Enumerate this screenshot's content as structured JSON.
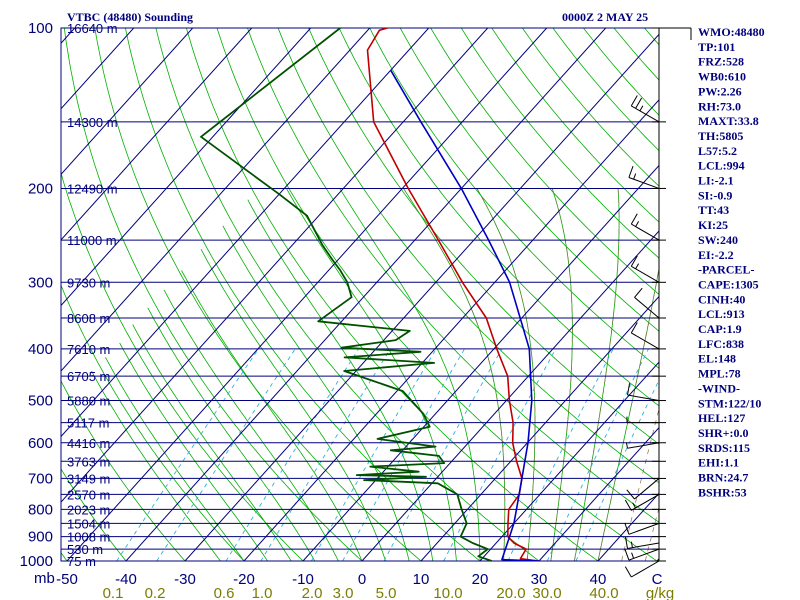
{
  "title": "VTBC (48480) Sounding",
  "datetime": "0000Z  2 MAY 25",
  "colors": {
    "axes": "#00007c",
    "isobar": "#00007c",
    "isotherm": "#00007c",
    "dry_adiabat": "#00b000",
    "moist_adiabat": "#00b000",
    "mixing_ratio": "#2db0e0",
    "mixing_ratio_label": "#7c7c00",
    "temperature": "#c00000",
    "dewpoint": "#005000",
    "parcel": "#0000c0",
    "wind_barbs": "#000000",
    "background": "#ffffff"
  },
  "x_ticks": [
    "-50",
    "-40",
    "-30",
    "-20",
    "-10",
    "0",
    "10",
    "20",
    "30",
    "40",
    "C"
  ],
  "x_unit_label": "mb",
  "mixing_ratio_labels": [
    "0.1",
    "0.2",
    "0.6",
    "1.0",
    "2.0",
    "3.0",
    "5.0",
    "10.0",
    "20.0",
    "30.0",
    "40.0",
    "g/kg"
  ],
  "pressure_ticks": [
    "100",
    "200",
    "300",
    "400",
    "500",
    "600",
    "700",
    "800",
    "900",
    "1000"
  ],
  "height_labels": [
    "16640 m",
    "14300 m",
    "12490 m",
    "11000 m",
    "9730 m",
    "8608 m",
    "7610 m",
    "6705 m",
    "5880 m",
    "5117 m",
    "4416 m",
    "3763 m",
    "3149 m",
    "2570 m",
    "2023 m",
    "1504 m",
    "1008 m",
    "530 m",
    "75 m"
  ],
  "indices": [
    "WMO:48480",
    "TP:101",
    "FRZ:528",
    "WB0:610",
    "PW:2.26",
    "RH:73.0",
    "MAXT:33.8",
    "TH:5805",
    "L57:5.2",
    "LCL:994",
    "LI:-2.1",
    "SI:-0.9",
    "TT:43",
    "KI:25",
    "SW:240",
    "EI:-2.2",
    "-PARCEL-",
    "CAPE:1305",
    "CINH:40",
    "LCL:913",
    "CAP:1.9",
    "LFC:838",
    "EL:148",
    "MPL:78",
    "-WIND-",
    "STM:122/10",
    "HEL:127",
    "SHR+:0.0",
    "SRDS:115",
    "EHI:1.1",
    "BRN:24.7",
    "BSHR:53"
  ],
  "chart_data": {
    "type": "line",
    "diagram": "skew-T log-P",
    "xlabel": "C",
    "ylabel": "mb",
    "xlim": [
      -50,
      50
    ],
    "ylim": [
      1000,
      100
    ],
    "y_scale": "log",
    "isobars_mb": [
      100,
      150,
      200,
      250,
      300,
      350,
      400,
      450,
      500,
      550,
      600,
      650,
      700,
      750,
      800,
      850,
      900,
      950,
      1000
    ],
    "mixing_ratios_gkg": [
      0.1,
      0.2,
      0.6,
      1.0,
      2.0,
      3.0,
      5.0,
      10.0,
      20.0,
      30.0,
      40.0
    ],
    "height_levels": [
      {
        "p": 100,
        "h": "16640 m"
      },
      {
        "p": 150,
        "h": "14300 m"
      },
      {
        "p": 200,
        "h": "12490 m"
      },
      {
        "p": 250,
        "h": "11000 m"
      },
      {
        "p": 300,
        "h": "9730 m"
      },
      {
        "p": 350,
        "h": "8608 m"
      },
      {
        "p": 400,
        "h": "7610 m"
      },
      {
        "p": 450,
        "h": "6705 m"
      },
      {
        "p": 500,
        "h": "5880 m"
      },
      {
        "p": 550,
        "h": "5117 m"
      },
      {
        "p": 600,
        "h": "4416 m"
      },
      {
        "p": 650,
        "h": "3763 m"
      },
      {
        "p": 700,
        "h": "3149 m"
      },
      {
        "p": 750,
        "h": "2570 m"
      },
      {
        "p": 800,
        "h": "2023 m"
      },
      {
        "p": 850,
        "h": "1504 m"
      },
      {
        "p": 900,
        "h": "1008 m"
      },
      {
        "p": 950,
        "h": "530 m"
      },
      {
        "p": 1000,
        "h": "75 m"
      }
    ],
    "series": [
      {
        "key": "temperature",
        "points": [
          [
            1000,
            30.0
          ],
          [
            990,
            26.5
          ],
          [
            950,
            26.0
          ],
          [
            925,
            23.0
          ],
          [
            900,
            21.0
          ],
          [
            850,
            19.0
          ],
          [
            800,
            17.0
          ],
          [
            750,
            16.5
          ],
          [
            700,
            14.5
          ],
          [
            650,
            11.0
          ],
          [
            600,
            7.5
          ],
          [
            550,
            4.5
          ],
          [
            500,
            0.5
          ],
          [
            450,
            -3.5
          ],
          [
            400,
            -9.5
          ],
          [
            350,
            -16.0
          ],
          [
            300,
            -25.5
          ],
          [
            250,
            -36.0
          ],
          [
            200,
            -49.0
          ],
          [
            150,
            -65.0
          ],
          [
            110,
            -77.0
          ],
          [
            101,
            -78.0
          ],
          [
            100,
            -77.0
          ]
        ]
      },
      {
        "key": "dewpoint",
        "points": [
          [
            1000,
            22.0
          ],
          [
            980,
            19.0
          ],
          [
            950,
            19.5
          ],
          [
            925,
            16.0
          ],
          [
            900,
            13.0
          ],
          [
            850,
            12.0
          ],
          [
            800,
            9.0
          ],
          [
            750,
            6.0
          ],
          [
            715,
            1.0
          ],
          [
            705,
            -12.0
          ],
          [
            695,
            -2.0
          ],
          [
            690,
            -14.0
          ],
          [
            680,
            -4.0
          ],
          [
            665,
            -13.0
          ],
          [
            655,
            -1.0
          ],
          [
            635,
            -3.0
          ],
          [
            620,
            -12.0
          ],
          [
            610,
            -5.0
          ],
          [
            590,
            -16.0
          ],
          [
            560,
            -9.0
          ],
          [
            530,
            -12.0
          ],
          [
            480,
            -19.0
          ],
          [
            440,
            -32.0
          ],
          [
            425,
            -18.0
          ],
          [
            415,
            -34.0
          ],
          [
            405,
            -22.0
          ],
          [
            398,
            -36.0
          ],
          [
            385,
            -28.0
          ],
          [
            370,
            -27.0
          ],
          [
            355,
            -44.0
          ],
          [
            320,
            -42.0
          ],
          [
            300,
            -45.0
          ],
          [
            285,
            -48.0
          ],
          [
            272,
            -51.0
          ],
          [
            255,
            -55.0
          ],
          [
            225,
            -62.0
          ],
          [
            205,
            -70.0
          ],
          [
            160,
            -92.0
          ],
          [
            100,
            -85.0
          ]
        ]
      },
      {
        "key": "parcel",
        "points": [
          [
            1000,
            30.0
          ],
          [
            994,
            23.5
          ],
          [
            950,
            22.5
          ],
          [
            900,
            21.3
          ],
          [
            850,
            20.0
          ],
          [
            800,
            18.3
          ],
          [
            700,
            14.5
          ],
          [
            600,
            10.1
          ],
          [
            500,
            4.3
          ],
          [
            400,
            -4.0
          ],
          [
            300,
            -17.5
          ],
          [
            250,
            -27.5
          ],
          [
            200,
            -40.0
          ],
          [
            150,
            -57.0
          ],
          [
            120,
            -70.0
          ]
        ]
      }
    ],
    "winds": [
      {
        "p": 1000,
        "dir": 240,
        "kt": 10
      },
      {
        "p": 950,
        "dir": 250,
        "kt": 15
      },
      {
        "p": 925,
        "dir": 260,
        "kt": 15
      },
      {
        "p": 850,
        "dir": 250,
        "kt": 10
      },
      {
        "p": 750,
        "dir": 240,
        "kt": 15
      },
      {
        "p": 700,
        "dir": 230,
        "kt": 10
      },
      {
        "p": 600,
        "dir": 260,
        "kt": 5
      },
      {
        "p": 550,
        "dir": 270,
        "kt": 5
      },
      {
        "p": 500,
        "dir": 280,
        "kt": 10
      },
      {
        "p": 400,
        "dir": 300,
        "kt": 10
      },
      {
        "p": 350,
        "dir": 310,
        "kt": 10
      },
      {
        "p": 300,
        "dir": 300,
        "kt": 15
      },
      {
        "p": 250,
        "dir": 300,
        "kt": 15
      },
      {
        "p": 200,
        "dir": 290,
        "kt": 15
      },
      {
        "p": 150,
        "dir": 300,
        "kt": 25
      },
      {
        "p": 100,
        "dir": 90,
        "kt": 10
      }
    ]
  }
}
